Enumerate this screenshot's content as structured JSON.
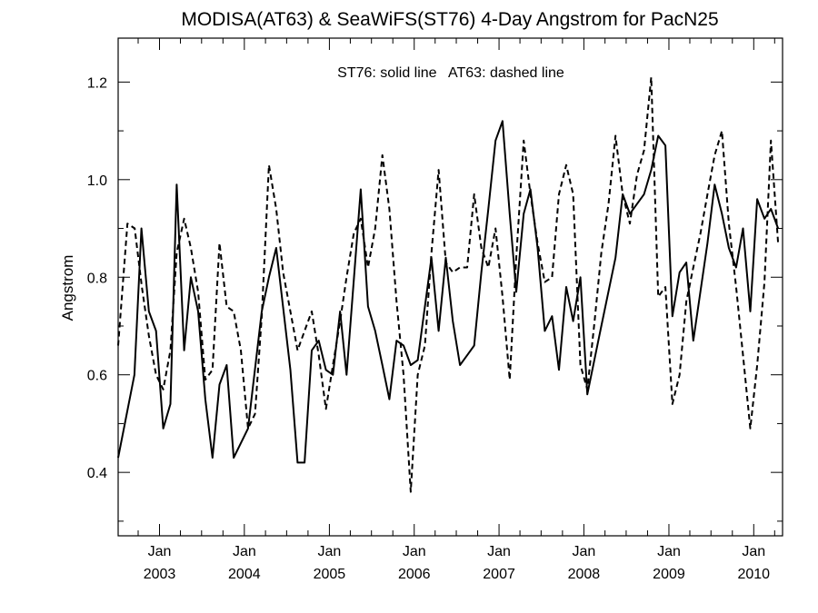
{
  "chart_data": {
    "type": "line",
    "title": "MODISA(AT63) & SeaWiFS(ST76) 4-Day Angstrom for PacN25",
    "annotation": "ST76: solid line   AT63: dashed line",
    "xlabel": "",
    "ylabel": "Angstrom",
    "xlim": [
      "2002-07-07",
      "2010-05-05"
    ],
    "ylim": [
      0.27,
      1.29
    ],
    "yticks": [
      0.4,
      0.6,
      0.8,
      1.0,
      1.2
    ],
    "ytick_labels": [
      "0.4",
      "0.6",
      "0.8",
      "1.0",
      "1.2"
    ],
    "xticks": [
      {
        "date": "2003-01-01",
        "month": "Jan",
        "year": "2003"
      },
      {
        "date": "2004-01-01",
        "month": "Jan",
        "year": "2004"
      },
      {
        "date": "2005-01-01",
        "month": "Jan",
        "year": "2005"
      },
      {
        "date": "2006-01-01",
        "month": "Jan",
        "year": "2006"
      },
      {
        "date": "2007-01-01",
        "month": "Jan",
        "year": "2007"
      },
      {
        "date": "2008-01-01",
        "month": "Jan",
        "year": "2008"
      },
      {
        "date": "2009-01-01",
        "month": "Jan",
        "year": "2009"
      },
      {
        "date": "2010-01-01",
        "month": "Jan",
        "year": "2010"
      }
    ],
    "grid": false,
    "series": [
      {
        "name": "ST76",
        "style": "solid",
        "color": "#000000",
        "points": [
          [
            "2002-07-07",
            0.43
          ],
          [
            "2002-09-15",
            0.6
          ],
          [
            "2002-10-15",
            0.9
          ],
          [
            "2002-11-16",
            0.73
          ],
          [
            "2002-12-17",
            0.69
          ],
          [
            "2003-01-17",
            0.49
          ],
          [
            "2003-02-17",
            0.54
          ],
          [
            "2003-03-16",
            0.99
          ],
          [
            "2003-04-17",
            0.65
          ],
          [
            "2003-05-16",
            0.8
          ],
          [
            "2003-06-16",
            0.73
          ],
          [
            "2003-07-17",
            0.55
          ],
          [
            "2003-08-17",
            0.43
          ],
          [
            "2003-09-16",
            0.58
          ],
          [
            "2003-10-17",
            0.62
          ],
          [
            "2003-11-16",
            0.43
          ],
          [
            "2003-12-17",
            0.46
          ],
          [
            "2004-01-17",
            0.49
          ],
          [
            "2004-03-16",
            0.73
          ],
          [
            "2004-04-16",
            0.8
          ],
          [
            "2004-05-17",
            0.86
          ],
          [
            "2004-07-17",
            0.61
          ],
          [
            "2004-08-17",
            0.42
          ],
          [
            "2004-09-16",
            0.42
          ],
          [
            "2004-10-17",
            0.65
          ],
          [
            "2004-11-16",
            0.67
          ],
          [
            "2004-12-17",
            0.61
          ],
          [
            "2005-01-16",
            0.6
          ],
          [
            "2005-02-16",
            0.73
          ],
          [
            "2005-03-16",
            0.6
          ],
          [
            "2005-05-16",
            0.98
          ],
          [
            "2005-06-16",
            0.74
          ],
          [
            "2005-07-17",
            0.69
          ],
          [
            "2005-08-17",
            0.62
          ],
          [
            "2005-09-16",
            0.55
          ],
          [
            "2005-10-17",
            0.67
          ],
          [
            "2005-11-16",
            0.66
          ],
          [
            "2005-12-17",
            0.62
          ],
          [
            "2006-01-16",
            0.63
          ],
          [
            "2006-03-16",
            0.84
          ],
          [
            "2006-04-16",
            0.69
          ],
          [
            "2006-05-17",
            0.84
          ],
          [
            "2006-06-16",
            0.71
          ],
          [
            "2006-07-17",
            0.62
          ],
          [
            "2006-08-17",
            0.64
          ],
          [
            "2006-09-16",
            0.66
          ],
          [
            "2006-10-17",
            0.81
          ],
          [
            "2006-11-16",
            0.94
          ],
          [
            "2006-12-17",
            1.08
          ],
          [
            "2007-01-16",
            1.12
          ],
          [
            "2007-02-16",
            0.93
          ],
          [
            "2007-03-16",
            0.77
          ],
          [
            "2007-04-17",
            0.93
          ],
          [
            "2007-05-16",
            0.98
          ],
          [
            "2007-06-16",
            0.86
          ],
          [
            "2007-07-17",
            0.69
          ],
          [
            "2007-08-17",
            0.72
          ],
          [
            "2007-09-16",
            0.61
          ],
          [
            "2007-10-17",
            0.78
          ],
          [
            "2007-11-16",
            0.71
          ],
          [
            "2007-12-17",
            0.8
          ],
          [
            "2008-01-16",
            0.56
          ],
          [
            "2008-03-16",
            0.7
          ],
          [
            "2008-05-16",
            0.84
          ],
          [
            "2008-06-16",
            0.97
          ],
          [
            "2008-07-17",
            0.93
          ],
          [
            "2008-09-16",
            0.97
          ],
          [
            "2008-10-17",
            1.02
          ],
          [
            "2008-11-16",
            1.09
          ],
          [
            "2008-12-17",
            1.07
          ],
          [
            "2009-01-16",
            0.72
          ],
          [
            "2009-02-16",
            0.81
          ],
          [
            "2009-03-17",
            0.83
          ],
          [
            "2009-04-16",
            0.67
          ],
          [
            "2009-06-16",
            0.87
          ],
          [
            "2009-07-17",
            0.99
          ],
          [
            "2009-08-17",
            0.93
          ],
          [
            "2009-09-16",
            0.86
          ],
          [
            "2009-10-17",
            0.82
          ],
          [
            "2009-11-16",
            0.9
          ],
          [
            "2009-12-17",
            0.73
          ],
          [
            "2010-01-16",
            0.96
          ],
          [
            "2010-02-16",
            0.92
          ],
          [
            "2010-03-16",
            0.94
          ],
          [
            "2010-04-16",
            0.9
          ]
        ]
      },
      {
        "name": "AT63",
        "style": "dashed",
        "color": "#000000",
        "points": [
          [
            "2002-07-07",
            0.66
          ],
          [
            "2002-08-16",
            0.91
          ],
          [
            "2002-09-16",
            0.9
          ],
          [
            "2002-10-17",
            0.78
          ],
          [
            "2002-11-16",
            0.68
          ],
          [
            "2002-12-17",
            0.6
          ],
          [
            "2003-01-17",
            0.57
          ],
          [
            "2003-02-17",
            0.65
          ],
          [
            "2003-03-16",
            0.85
          ],
          [
            "2003-04-17",
            0.92
          ],
          [
            "2003-05-16",
            0.86
          ],
          [
            "2003-06-16",
            0.77
          ],
          [
            "2003-07-17",
            0.59
          ],
          [
            "2003-08-17",
            0.61
          ],
          [
            "2003-09-16",
            0.87
          ],
          [
            "2003-10-17",
            0.74
          ],
          [
            "2003-11-16",
            0.73
          ],
          [
            "2003-12-17",
            0.65
          ],
          [
            "2004-01-17",
            0.49
          ],
          [
            "2004-02-16",
            0.52
          ],
          [
            "2004-03-16",
            0.72
          ],
          [
            "2004-04-16",
            1.03
          ],
          [
            "2004-05-17",
            0.94
          ],
          [
            "2004-06-16",
            0.81
          ],
          [
            "2004-07-17",
            0.73
          ],
          [
            "2004-08-17",
            0.65
          ],
          [
            "2004-09-16",
            0.69
          ],
          [
            "2004-10-17",
            0.73
          ],
          [
            "2004-11-16",
            0.64
          ],
          [
            "2004-12-17",
            0.53
          ],
          [
            "2005-01-16",
            0.62
          ],
          [
            "2005-02-16",
            0.71
          ],
          [
            "2005-03-16",
            0.8
          ],
          [
            "2005-04-16",
            0.89
          ],
          [
            "2005-05-16",
            0.92
          ],
          [
            "2005-06-16",
            0.82
          ],
          [
            "2005-07-17",
            0.9
          ],
          [
            "2005-08-17",
            1.05
          ],
          [
            "2005-09-16",
            0.94
          ],
          [
            "2005-10-17",
            0.75
          ],
          [
            "2005-11-16",
            0.6
          ],
          [
            "2005-12-17",
            0.36
          ],
          [
            "2006-01-16",
            0.6
          ],
          [
            "2006-02-16",
            0.66
          ],
          [
            "2006-03-16",
            0.85
          ],
          [
            "2006-04-16",
            1.02
          ],
          [
            "2006-05-17",
            0.83
          ],
          [
            "2006-06-16",
            0.81
          ],
          [
            "2006-07-17",
            0.82
          ],
          [
            "2006-08-17",
            0.82
          ],
          [
            "2006-09-16",
            0.97
          ],
          [
            "2006-10-17",
            0.86
          ],
          [
            "2006-11-16",
            0.82
          ],
          [
            "2006-12-17",
            0.9
          ],
          [
            "2007-01-16",
            0.76
          ],
          [
            "2007-02-16",
            0.59
          ],
          [
            "2007-03-16",
            0.84
          ],
          [
            "2007-04-17",
            1.08
          ],
          [
            "2007-05-16",
            0.97
          ],
          [
            "2007-06-16",
            0.87
          ],
          [
            "2007-07-17",
            0.79
          ],
          [
            "2007-08-17",
            0.8
          ],
          [
            "2007-09-16",
            0.97
          ],
          [
            "2007-10-17",
            1.03
          ],
          [
            "2007-11-16",
            0.97
          ],
          [
            "2007-12-17",
            0.62
          ],
          [
            "2008-01-16",
            0.57
          ],
          [
            "2008-02-16",
            0.71
          ],
          [
            "2008-03-16",
            0.85
          ],
          [
            "2008-04-16",
            0.95
          ],
          [
            "2008-05-16",
            1.09
          ],
          [
            "2008-06-16",
            0.97
          ],
          [
            "2008-07-17",
            0.91
          ],
          [
            "2008-08-17",
            1.01
          ],
          [
            "2008-09-16",
            1.06
          ],
          [
            "2008-10-17",
            1.21
          ],
          [
            "2008-11-16",
            0.76
          ],
          [
            "2008-12-17",
            0.78
          ],
          [
            "2009-01-16",
            0.54
          ],
          [
            "2009-02-16",
            0.6
          ],
          [
            "2009-03-17",
            0.75
          ],
          [
            "2009-04-16",
            0.82
          ],
          [
            "2009-05-17",
            0.89
          ],
          [
            "2009-06-16",
            0.97
          ],
          [
            "2009-07-17",
            1.05
          ],
          [
            "2009-08-17",
            1.1
          ],
          [
            "2009-09-16",
            0.91
          ],
          [
            "2009-10-17",
            0.78
          ],
          [
            "2009-11-16",
            0.64
          ],
          [
            "2009-12-17",
            0.49
          ],
          [
            "2010-01-16",
            0.62
          ],
          [
            "2010-02-16",
            0.79
          ],
          [
            "2010-03-16",
            1.08
          ],
          [
            "2010-04-16",
            0.87
          ]
        ]
      }
    ]
  }
}
